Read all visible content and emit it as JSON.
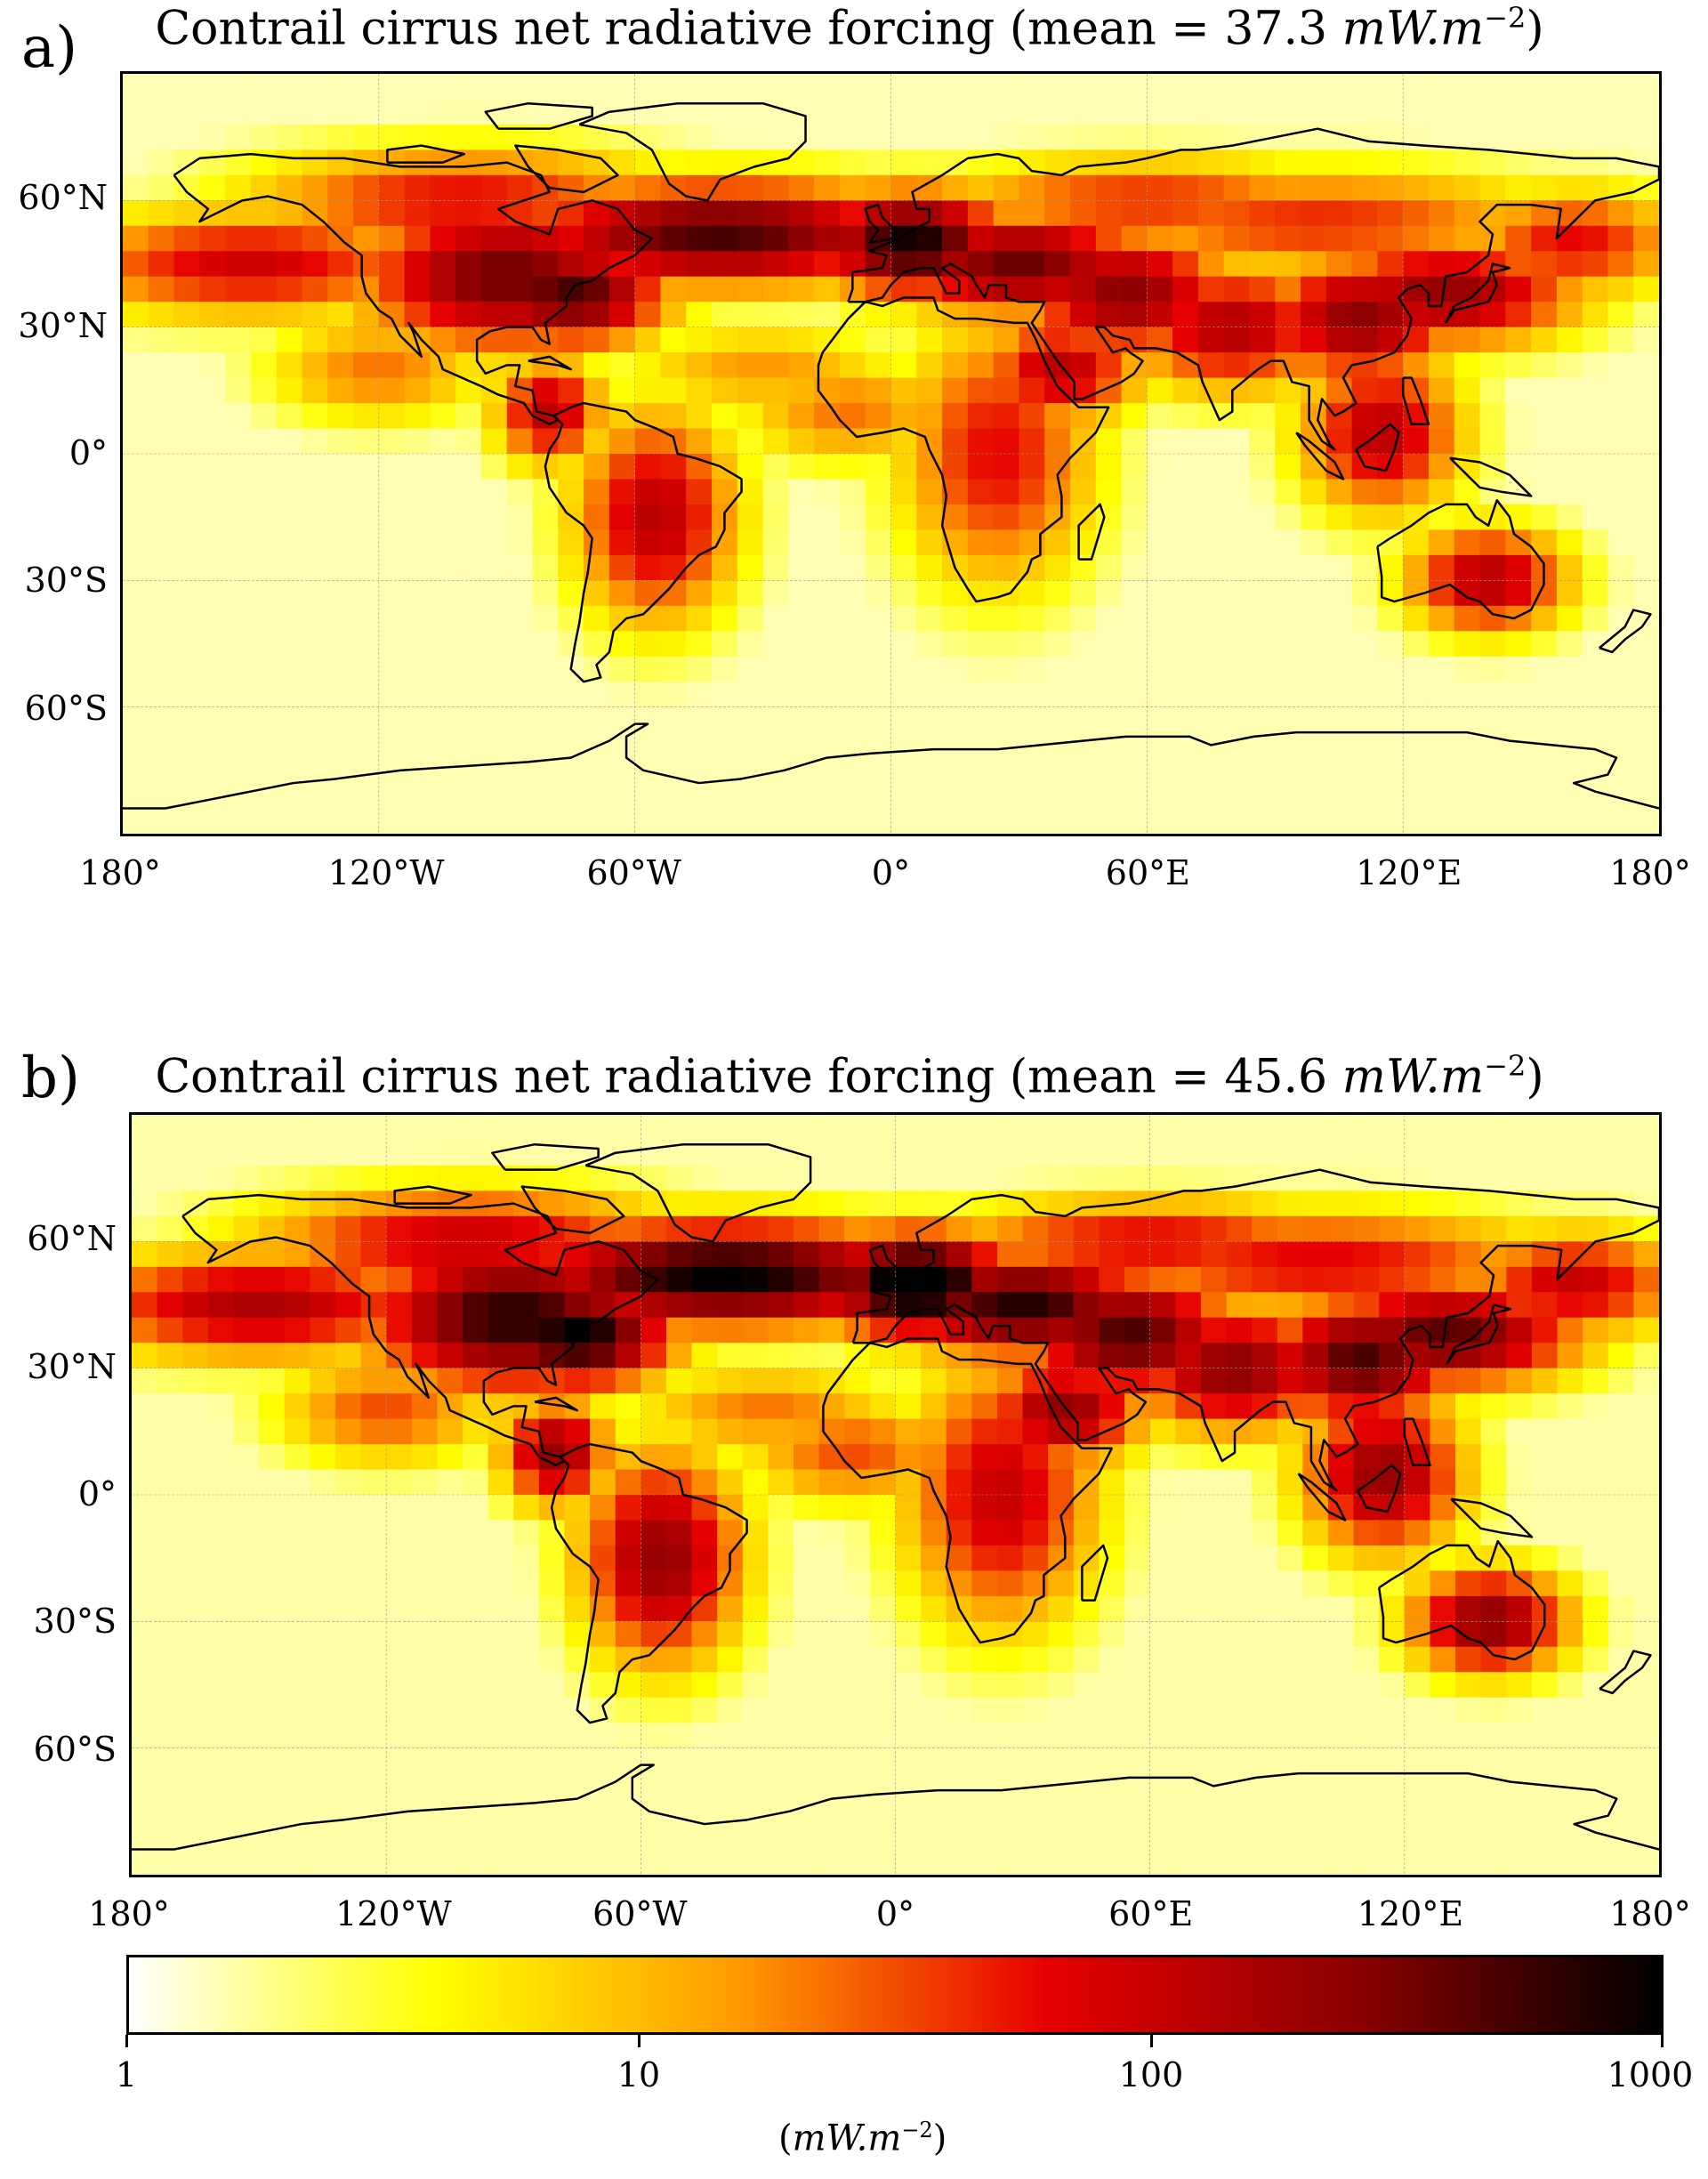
{
  "panels": [
    {
      "letter": "a)",
      "title_prefix": "Contrail cirrus net radiative forcing (mean = 37.3 ",
      "title_unit": "mW.m",
      "title_exp": "−2",
      "title_suffix": ")",
      "mean": 37.3
    },
    {
      "letter": "b)",
      "title_prefix": "Contrail cirrus net radiative forcing (mean = 45.6 ",
      "title_unit": "mW.m",
      "title_exp": "−2",
      "title_suffix": ")",
      "mean": 45.6
    }
  ],
  "axes": {
    "lon_labels": [
      "180°",
      "120°W",
      "60°W",
      "0°",
      "60°E",
      "120°E",
      "180°"
    ],
    "lat_labels": [
      "60°N",
      "30°N",
      "0°",
      "30°S",
      "60°S"
    ],
    "lat_values": [
      60,
      30,
      0,
      -30,
      -60
    ],
    "lon_values": [
      -180,
      -120,
      -60,
      0,
      60,
      120,
      180
    ],
    "lat_range": [
      -90,
      90
    ],
    "lon_range": [
      -180,
      180
    ]
  },
  "colorbar": {
    "ticks": [
      "1",
      "10",
      "100",
      "1000"
    ],
    "tick_values": [
      1,
      10,
      100,
      1000
    ],
    "scale": "log",
    "unit_prefix": "(",
    "unit": "mW.m",
    "unit_exp": "−2",
    "unit_suffix": ")",
    "colormap": "hot_r",
    "colors": [
      "#ffffff",
      "#ffff00",
      "#ff9900",
      "#e60000",
      "#8b0000",
      "#000000"
    ]
  },
  "colors": {
    "grid": "#9a9a9a",
    "coastline": "#000000",
    "background": "#ffffff"
  }
}
